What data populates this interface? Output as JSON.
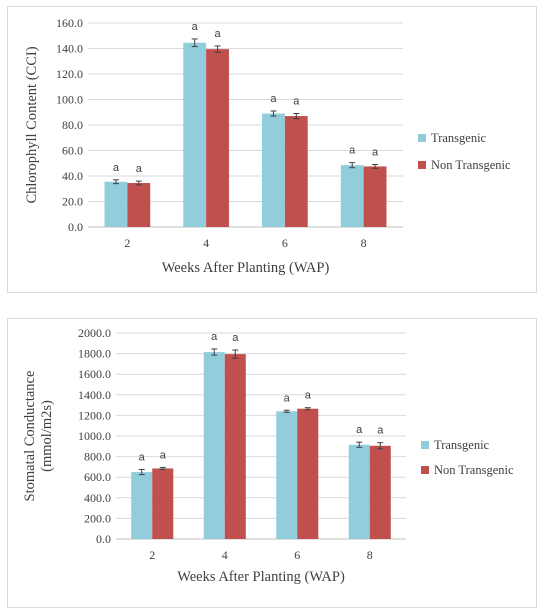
{
  "chart_data": [
    {
      "type": "bar",
      "title": "",
      "xlabel": "Weeks After Planting (WAP)",
      "ylabel": "Chlorophyll Content (CCI)",
      "categories": [
        "2",
        "4",
        "6",
        "8"
      ],
      "ylim": [
        0,
        160
      ],
      "yticks": [
        "0.0",
        "20.0",
        "40.0",
        "60.0",
        "80.0",
        "100.0",
        "120.0",
        "140.0",
        "160.0"
      ],
      "grid": true,
      "legend_position": "right",
      "series": [
        {
          "name": "Transgenic",
          "color": "#92cddc",
          "values": [
            35.5,
            144.5,
            89.0,
            48.5
          ],
          "errors": [
            1.5,
            3.0,
            2.0,
            2.0
          ],
          "labels": [
            "a",
            "a",
            "a",
            "a"
          ]
        },
        {
          "name": "Non Transgenic",
          "color": "#c0504d",
          "values": [
            34.5,
            139.5,
            87.0,
            47.5
          ],
          "errors": [
            1.5,
            2.5,
            2.0,
            1.5
          ],
          "labels": [
            "a",
            "a",
            "a",
            "a"
          ]
        }
      ]
    },
    {
      "type": "bar",
      "title": "",
      "xlabel": "Weeks After Planting (WAP)",
      "ylabel": "Stomatal Conductance (mmol/m2s)",
      "categories": [
        "2",
        "4",
        "6",
        "8"
      ],
      "ylim": [
        0,
        2000
      ],
      "yticks": [
        "0.0",
        "200.0",
        "400.0",
        "600.0",
        "800.0",
        "1000.0",
        "1200.0",
        "1400.0",
        "1600.0",
        "1800.0",
        "2000.0"
      ],
      "grid": true,
      "legend_position": "right",
      "series": [
        {
          "name": "Transgenic",
          "color": "#92cddc",
          "values": [
            650,
            1815,
            1240,
            915
          ],
          "errors": [
            25,
            30,
            10,
            25
          ],
          "labels": [
            "a",
            "a",
            "a",
            "a"
          ]
        },
        {
          "name": "Non Transgenic",
          "color": "#c0504d",
          "values": [
            685,
            1795,
            1265,
            905
          ],
          "errors": [
            10,
            40,
            10,
            30
          ],
          "labels": [
            "a",
            "a",
            "a",
            "a"
          ]
        }
      ]
    }
  ]
}
